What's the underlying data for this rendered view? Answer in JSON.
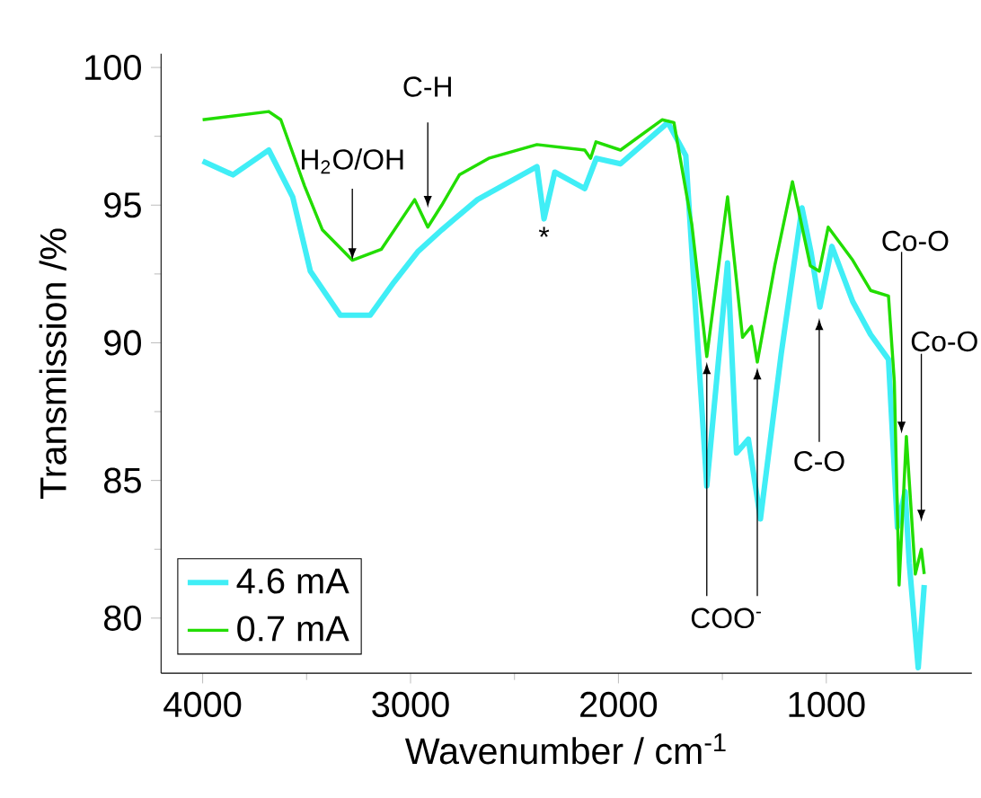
{
  "chart_data": {
    "type": "line",
    "xlabel": "Wavenumber / cm$^{-1}$",
    "ylabel": "Transmission /%",
    "xlim": [
      4200,
      300
    ],
    "ylim": [
      78,
      100.5
    ],
    "xticks": [
      4000,
      3000,
      2000,
      1000
    ],
    "yticks": [
      80,
      85,
      90,
      95,
      100
    ],
    "legend": "bottom left",
    "series": [
      {
        "name": "4.6 mA",
        "color": "#40eef6",
        "x": [
          4000,
          3854,
          3682,
          3567,
          3482,
          3338,
          3194,
          3080,
          2966,
          2850,
          2678,
          2392,
          2358,
          2306,
          2162,
          2106,
          1990,
          1762,
          1676,
          1575,
          1475,
          1432,
          1375,
          1317,
          1217,
          1117,
          1074,
          1031,
          973,
          873,
          787,
          701,
          658,
          621,
          601,
          558,
          529
        ],
        "values": [
          96.6,
          96.1,
          97.0,
          95.3,
          92.6,
          91.0,
          91.0,
          92.2,
          93.3,
          94.1,
          95.2,
          96.4,
          94.5,
          96.2,
          95.6,
          96.7,
          96.5,
          98.0,
          96.8,
          84.8,
          92.9,
          86.0,
          86.5,
          83.6,
          89.6,
          94.9,
          93.3,
          91.3,
          93.5,
          91.5,
          90.3,
          89.4,
          83.3,
          84.6,
          82.0,
          78.2,
          81.2
        ]
      },
      {
        "name": "0.7 mA",
        "color": "#22dd00",
        "x": [
          4000,
          3682,
          3624,
          3510,
          3424,
          3280,
          3140,
          2980,
          2917,
          2850,
          2765,
          2624,
          2392,
          2162,
          2134,
          2108,
          1990,
          1790,
          1733,
          1647,
          1575,
          1475,
          1403,
          1360,
          1332,
          1248,
          1163,
          1077,
          1034,
          991,
          873,
          787,
          701,
          673,
          650,
          615,
          572,
          543,
          529
        ],
        "values": [
          98.1,
          98.4,
          98.1,
          95.7,
          94.1,
          93.0,
          93.4,
          95.2,
          94.2,
          95.0,
          96.1,
          96.7,
          97.2,
          97.0,
          96.7,
          97.3,
          97.0,
          98.1,
          98.0,
          94.3,
          89.5,
          95.3,
          90.2,
          90.6,
          89.3,
          92.8,
          95.85,
          92.8,
          92.6,
          94.2,
          93.0,
          91.9,
          91.7,
          88.6,
          81.2,
          86.6,
          81.6,
          82.5,
          81.6
        ]
      }
    ],
    "annotations": [
      {
        "text": "H$_{2}$O/OH",
        "x": 3280,
        "y": 93.0
      },
      {
        "text": "C-H",
        "x": 2917,
        "y": 94.9
      },
      {
        "text": "*",
        "x": 2358,
        "y": 94.5
      },
      {
        "text": "COO$^{-}$",
        "x": 1575,
        "y": 89.3
      },
      {
        "text": "C-O",
        "x": 1034,
        "y": 90.9
      },
      {
        "text": "Co-O",
        "x": 638,
        "y": 86.7
      },
      {
        "text": "Co-O",
        "x": 543,
        "y": 83.5
      }
    ]
  }
}
